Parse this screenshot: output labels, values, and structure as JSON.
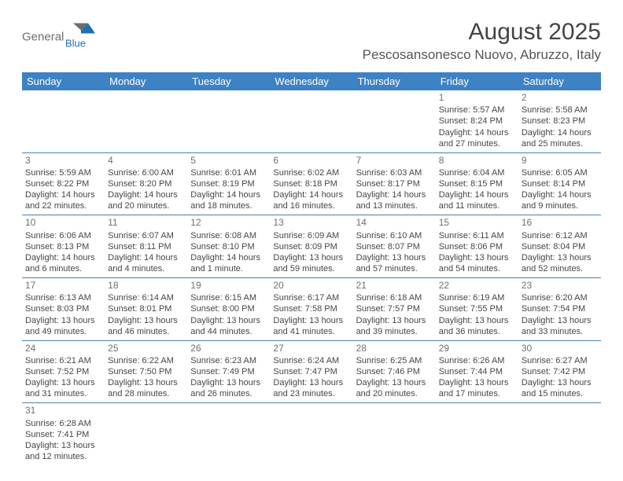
{
  "brand": {
    "name1": "General",
    "name2": "Blue"
  },
  "header": {
    "title": "August 2025",
    "location": "Pescosansonesco Nuovo, Abruzzo, Italy"
  },
  "colors": {
    "header_bg": "#3d82c4",
    "header_text": "#ffffff",
    "cell_border": "#4a7fb0",
    "text": "#464646",
    "daynum": "#707070",
    "brand_gray": "#6d6e71",
    "brand_blue": "#1e6fb4"
  },
  "dow": [
    "Sunday",
    "Monday",
    "Tuesday",
    "Wednesday",
    "Thursday",
    "Friday",
    "Saturday"
  ],
  "weeks": [
    [
      null,
      null,
      null,
      null,
      null,
      {
        "n": "1",
        "sunrise": "Sunrise: 5:57 AM",
        "sunset": "Sunset: 8:24 PM",
        "day1": "Daylight: 14 hours",
        "day2": "and 27 minutes."
      },
      {
        "n": "2",
        "sunrise": "Sunrise: 5:58 AM",
        "sunset": "Sunset: 8:23 PM",
        "day1": "Daylight: 14 hours",
        "day2": "and 25 minutes."
      }
    ],
    [
      {
        "n": "3",
        "sunrise": "Sunrise: 5:59 AM",
        "sunset": "Sunset: 8:22 PM",
        "day1": "Daylight: 14 hours",
        "day2": "and 22 minutes."
      },
      {
        "n": "4",
        "sunrise": "Sunrise: 6:00 AM",
        "sunset": "Sunset: 8:20 PM",
        "day1": "Daylight: 14 hours",
        "day2": "and 20 minutes."
      },
      {
        "n": "5",
        "sunrise": "Sunrise: 6:01 AM",
        "sunset": "Sunset: 8:19 PM",
        "day1": "Daylight: 14 hours",
        "day2": "and 18 minutes."
      },
      {
        "n": "6",
        "sunrise": "Sunrise: 6:02 AM",
        "sunset": "Sunset: 8:18 PM",
        "day1": "Daylight: 14 hours",
        "day2": "and 16 minutes."
      },
      {
        "n": "7",
        "sunrise": "Sunrise: 6:03 AM",
        "sunset": "Sunset: 8:17 PM",
        "day1": "Daylight: 14 hours",
        "day2": "and 13 minutes."
      },
      {
        "n": "8",
        "sunrise": "Sunrise: 6:04 AM",
        "sunset": "Sunset: 8:15 PM",
        "day1": "Daylight: 14 hours",
        "day2": "and 11 minutes."
      },
      {
        "n": "9",
        "sunrise": "Sunrise: 6:05 AM",
        "sunset": "Sunset: 8:14 PM",
        "day1": "Daylight: 14 hours",
        "day2": "and 9 minutes."
      }
    ],
    [
      {
        "n": "10",
        "sunrise": "Sunrise: 6:06 AM",
        "sunset": "Sunset: 8:13 PM",
        "day1": "Daylight: 14 hours",
        "day2": "and 6 minutes."
      },
      {
        "n": "11",
        "sunrise": "Sunrise: 6:07 AM",
        "sunset": "Sunset: 8:11 PM",
        "day1": "Daylight: 14 hours",
        "day2": "and 4 minutes."
      },
      {
        "n": "12",
        "sunrise": "Sunrise: 6:08 AM",
        "sunset": "Sunset: 8:10 PM",
        "day1": "Daylight: 14 hours",
        "day2": "and 1 minute."
      },
      {
        "n": "13",
        "sunrise": "Sunrise: 6:09 AM",
        "sunset": "Sunset: 8:09 PM",
        "day1": "Daylight: 13 hours",
        "day2": "and 59 minutes."
      },
      {
        "n": "14",
        "sunrise": "Sunrise: 6:10 AM",
        "sunset": "Sunset: 8:07 PM",
        "day1": "Daylight: 13 hours",
        "day2": "and 57 minutes."
      },
      {
        "n": "15",
        "sunrise": "Sunrise: 6:11 AM",
        "sunset": "Sunset: 8:06 PM",
        "day1": "Daylight: 13 hours",
        "day2": "and 54 minutes."
      },
      {
        "n": "16",
        "sunrise": "Sunrise: 6:12 AM",
        "sunset": "Sunset: 8:04 PM",
        "day1": "Daylight: 13 hours",
        "day2": "and 52 minutes."
      }
    ],
    [
      {
        "n": "17",
        "sunrise": "Sunrise: 6:13 AM",
        "sunset": "Sunset: 8:03 PM",
        "day1": "Daylight: 13 hours",
        "day2": "and 49 minutes."
      },
      {
        "n": "18",
        "sunrise": "Sunrise: 6:14 AM",
        "sunset": "Sunset: 8:01 PM",
        "day1": "Daylight: 13 hours",
        "day2": "and 46 minutes."
      },
      {
        "n": "19",
        "sunrise": "Sunrise: 6:15 AM",
        "sunset": "Sunset: 8:00 PM",
        "day1": "Daylight: 13 hours",
        "day2": "and 44 minutes."
      },
      {
        "n": "20",
        "sunrise": "Sunrise: 6:17 AM",
        "sunset": "Sunset: 7:58 PM",
        "day1": "Daylight: 13 hours",
        "day2": "and 41 minutes."
      },
      {
        "n": "21",
        "sunrise": "Sunrise: 6:18 AM",
        "sunset": "Sunset: 7:57 PM",
        "day1": "Daylight: 13 hours",
        "day2": "and 39 minutes."
      },
      {
        "n": "22",
        "sunrise": "Sunrise: 6:19 AM",
        "sunset": "Sunset: 7:55 PM",
        "day1": "Daylight: 13 hours",
        "day2": "and 36 minutes."
      },
      {
        "n": "23",
        "sunrise": "Sunrise: 6:20 AM",
        "sunset": "Sunset: 7:54 PM",
        "day1": "Daylight: 13 hours",
        "day2": "and 33 minutes."
      }
    ],
    [
      {
        "n": "24",
        "sunrise": "Sunrise: 6:21 AM",
        "sunset": "Sunset: 7:52 PM",
        "day1": "Daylight: 13 hours",
        "day2": "and 31 minutes."
      },
      {
        "n": "25",
        "sunrise": "Sunrise: 6:22 AM",
        "sunset": "Sunset: 7:50 PM",
        "day1": "Daylight: 13 hours",
        "day2": "and 28 minutes."
      },
      {
        "n": "26",
        "sunrise": "Sunrise: 6:23 AM",
        "sunset": "Sunset: 7:49 PM",
        "day1": "Daylight: 13 hours",
        "day2": "and 26 minutes."
      },
      {
        "n": "27",
        "sunrise": "Sunrise: 6:24 AM",
        "sunset": "Sunset: 7:47 PM",
        "day1": "Daylight: 13 hours",
        "day2": "and 23 minutes."
      },
      {
        "n": "28",
        "sunrise": "Sunrise: 6:25 AM",
        "sunset": "Sunset: 7:46 PM",
        "day1": "Daylight: 13 hours",
        "day2": "and 20 minutes."
      },
      {
        "n": "29",
        "sunrise": "Sunrise: 6:26 AM",
        "sunset": "Sunset: 7:44 PM",
        "day1": "Daylight: 13 hours",
        "day2": "and 17 minutes."
      },
      {
        "n": "30",
        "sunrise": "Sunrise: 6:27 AM",
        "sunset": "Sunset: 7:42 PM",
        "day1": "Daylight: 13 hours",
        "day2": "and 15 minutes."
      }
    ],
    [
      {
        "n": "31",
        "sunrise": "Sunrise: 6:28 AM",
        "sunset": "Sunset: 7:41 PM",
        "day1": "Daylight: 13 hours",
        "day2": "and 12 minutes."
      },
      null,
      null,
      null,
      null,
      null,
      null
    ]
  ]
}
